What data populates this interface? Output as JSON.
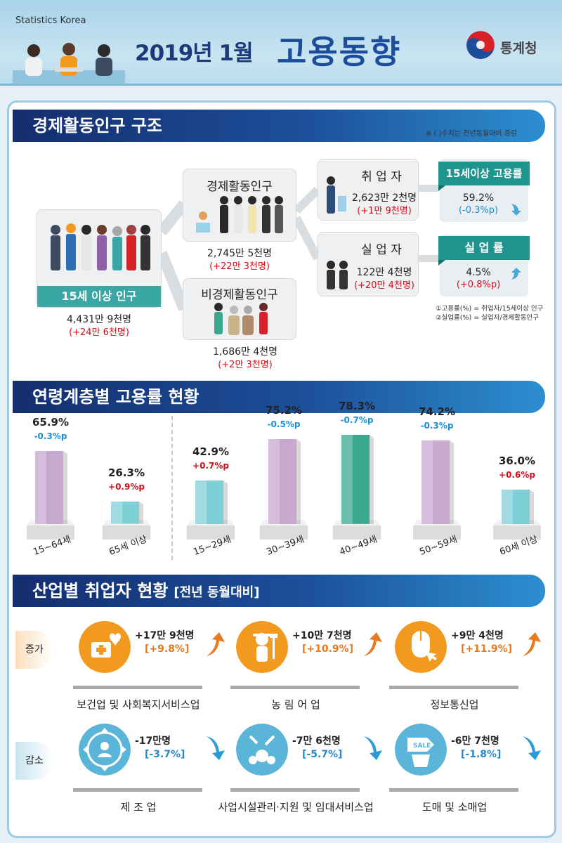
{
  "header": {
    "org_en": "Statistics Korea",
    "date": "2019년 1월",
    "title": "고용동향",
    "logo_text": "통계청"
  },
  "structure": {
    "section_title": "경제활동인구 구조",
    "note": "※ ( )수치는 전년동월대비 증감",
    "population_15plus": {
      "label": "15세 이상 인구",
      "value": "4,431만 9천명",
      "change": "(+24만 6천명)"
    },
    "economically_active": {
      "label": "경제활동인구",
      "value": "2,745만 5천명",
      "change": "(+22만 3천명)"
    },
    "economically_inactive": {
      "label": "비경제활동인구",
      "value": "1,686만 4천명",
      "change": "(+2만 3천명)"
    },
    "employed": {
      "label": "취 업 자",
      "value": "2,623만 2천명",
      "change": "(+1만 9천명)"
    },
    "unemployed": {
      "label": "실 업 자",
      "value": "122만 4천명",
      "change": "(+20만 4천명)"
    },
    "employment_rate": {
      "label": "15세이상 고용률",
      "value": "59.2%",
      "change": "(-0.3%p)"
    },
    "unemployment_rate": {
      "label": "실 업 률",
      "value": "4.5%",
      "change": "(+0.8%p)"
    },
    "legend": [
      "①고용률(%) = 취업자/15세이상 인구",
      "②실업률(%) = 실업자/경제활동인구"
    ]
  },
  "age_section": {
    "title": "연령계층별 고용률 현황"
  },
  "chart_data": {
    "type": "bar",
    "categories": [
      "15~64세",
      "65세 이상",
      "15~29세",
      "30~39세",
      "40~49세",
      "50~59세",
      "60세 이상"
    ],
    "values": [
      65.9,
      26.3,
      42.9,
      75.2,
      78.3,
      74.2,
      36.0
    ],
    "value_labels": [
      "65.9%",
      "26.3%",
      "42.9%",
      "75.2%",
      "78.3%",
      "74.2%",
      "36.0%"
    ],
    "changes": [
      "-0.3%p",
      "+0.9%p",
      "+0.7%p",
      "-0.5%p",
      "-0.7%p",
      "-0.3%p",
      "+0.6%p"
    ],
    "colors": [
      "#c7a8cf",
      "#7fcfd6",
      "#7fcfd6",
      "#c7a8cf",
      "#3aa98f",
      "#c7a8cf",
      "#7fcfd6"
    ],
    "ylabel": "",
    "xlabel": ""
  },
  "industry": {
    "title": "산업별 취업자 현황",
    "subtitle": "[전년 동월대비]",
    "increase_label": "증가",
    "decrease_label": "감소",
    "increase": [
      {
        "name": "보건업 및 사회복지서비스업",
        "value": "+17만 9천명",
        "pct": "[+9.8%]",
        "icon": "health-care-icon"
      },
      {
        "name": "농 림 어 업",
        "value": "+10만 7천명",
        "pct": "[+10.9%]",
        "icon": "farmer-icon"
      },
      {
        "name": "정보통신업",
        "value": "+9만 4천명",
        "pct": "[+11.9%]",
        "icon": "mouse-click-icon"
      }
    ],
    "decrease": [
      {
        "name": "제 조 업",
        "value": "-17만명",
        "pct": "[-3.7%]",
        "icon": "manufacturing-icon"
      },
      {
        "name": "사업시설관리·지원 및 임대서비스업",
        "value": "-7만 6천명",
        "pct": "[-5.7%]",
        "icon": "facility-service-icon"
      },
      {
        "name": "도매 및 소매업",
        "value": "-6만 7천명",
        "pct": "[-1.8%]",
        "icon": "sale-tag-icon",
        "icon_text": "SALE"
      }
    ],
    "colors": {
      "increase": "#f29a1f",
      "decrease": "#5bb5d8",
      "up_arrow": "#e8791c",
      "down_arrow": "#2b9ad8",
      "pct_up": "#e8791c",
      "pct_down": "#2b88c8"
    }
  }
}
